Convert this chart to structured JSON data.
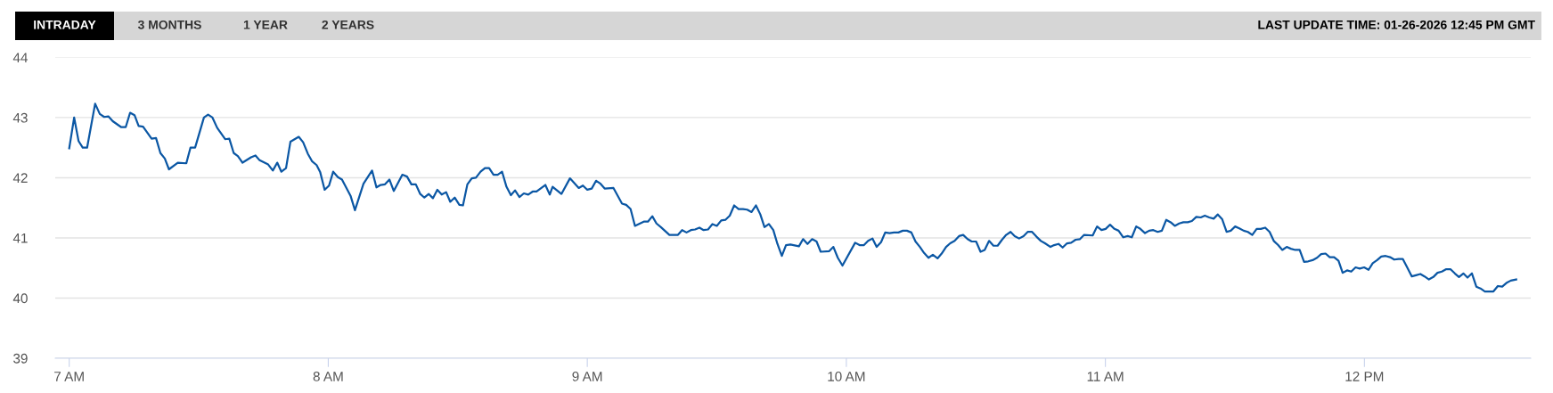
{
  "chart_data": {
    "type": "line",
    "title": "LAST UPDATE TIME: 01-26-2026 12:45 PM GMT",
    "annotations": [
      "INTRADAY",
      "3 MONTHS",
      "1 YEAR",
      "2 YEARS"
    ],
    "series": [
      {
        "color": "#0b57a4",
        "x": [
          7.0,
          7.019,
          7.036,
          7.052,
          7.069,
          7.1,
          7.118,
          7.135,
          7.151,
          7.168,
          7.201,
          7.218,
          7.235,
          7.252,
          7.268,
          7.285,
          7.318,
          7.335,
          7.352,
          7.369,
          7.385,
          7.419,
          7.452,
          7.468,
          7.486,
          7.52,
          7.536,
          7.553,
          7.571,
          7.602,
          7.618,
          7.635,
          7.651,
          7.669,
          7.702,
          7.719,
          7.735,
          7.768,
          7.786,
          7.803,
          7.819,
          7.837,
          7.854,
          7.886,
          7.903,
          7.921,
          7.938,
          7.955,
          7.969,
          7.986,
          8.003,
          8.019,
          8.037,
          8.053,
          8.086,
          8.103,
          8.136,
          8.169,
          8.186,
          8.202,
          8.219,
          8.236,
          8.253,
          8.286,
          8.304,
          8.321,
          8.338,
          8.355,
          8.371,
          8.388,
          8.404,
          8.421,
          8.438,
          8.455,
          8.471,
          8.488,
          8.506,
          8.52,
          8.537,
          8.554,
          8.57,
          8.588,
          8.605,
          8.621,
          8.638,
          8.654,
          8.671,
          8.688,
          8.705,
          8.721,
          8.738,
          8.755,
          8.772,
          8.789,
          8.804,
          8.838,
          8.855,
          8.866,
          8.9,
          8.933,
          8.967,
          8.983,
          9.0,
          9.017,
          9.034,
          9.051,
          9.067,
          9.101,
          9.134,
          9.15,
          9.167,
          9.184,
          9.218,
          9.234,
          9.251,
          9.267,
          9.284,
          9.317,
          9.35,
          9.366,
          9.383,
          9.4,
          9.416,
          9.433,
          9.449,
          9.466,
          9.483,
          9.5,
          9.517,
          9.533,
          9.55,
          9.567,
          9.584,
          9.601,
          9.617,
          9.634,
          9.651,
          9.668,
          9.684,
          9.701,
          9.718,
          9.734,
          9.751,
          9.767,
          9.784,
          9.817,
          9.833,
          9.85,
          9.868,
          9.885,
          9.901,
          9.934,
          9.95,
          9.967,
          9.985,
          10.034,
          10.051,
          10.068,
          10.084,
          10.101,
          10.117,
          10.134,
          10.15,
          10.167,
          10.184,
          10.201,
          10.218,
          10.234,
          10.251,
          10.267,
          10.284,
          10.3,
          10.317,
          10.334,
          10.352,
          10.368,
          10.385,
          10.401,
          10.418,
          10.435,
          10.451,
          10.468,
          10.484,
          10.501,
          10.518,
          10.534,
          10.551,
          10.568,
          10.584,
          10.601,
          10.617,
          10.634,
          10.65,
          10.667,
          10.684,
          10.7,
          10.717,
          10.734,
          10.751,
          10.767,
          10.788,
          10.802,
          10.819,
          10.835,
          10.852,
          10.868,
          10.885,
          10.902,
          10.918,
          10.951,
          10.968,
          10.985,
          11.001,
          11.018,
          11.035,
          11.051,
          11.069,
          11.086,
          11.102,
          11.119,
          11.135,
          11.153,
          11.169,
          11.185,
          11.202,
          11.218,
          11.235,
          11.252,
          11.268,
          11.285,
          11.301,
          11.318,
          11.334,
          11.351,
          11.368,
          11.384,
          11.401,
          11.418,
          11.434,
          11.451,
          11.468,
          11.484,
          11.501,
          11.517,
          11.534,
          11.55,
          11.567,
          11.584,
          11.6,
          11.617,
          11.634,
          11.65,
          11.667,
          11.683,
          11.7,
          11.716,
          11.733,
          11.75,
          11.767,
          11.783,
          11.8,
          11.817,
          11.833,
          11.85,
          11.866,
          11.883,
          11.9,
          11.916,
          11.933,
          11.949,
          11.966,
          11.982,
          11.999,
          12.016,
          12.032,
          12.049,
          12.065,
          12.082,
          12.099,
          12.115,
          12.132,
          12.148,
          12.165,
          12.183,
          12.199,
          12.216,
          12.232,
          12.249,
          12.266,
          12.282,
          12.299,
          12.316,
          12.332,
          12.349,
          12.365,
          12.382,
          12.398,
          12.415,
          12.432,
          12.448,
          12.465,
          12.482,
          12.498,
          12.515,
          12.532,
          12.548,
          12.565,
          12.586
        ],
        "values": [
          42.49,
          43.0,
          42.61,
          42.5,
          42.5,
          43.23,
          43.06,
          43.01,
          43.02,
          42.94,
          42.84,
          42.84,
          43.08,
          43.04,
          42.86,
          42.85,
          42.65,
          42.66,
          42.41,
          42.32,
          42.14,
          42.25,
          42.24,
          42.5,
          42.5,
          43.0,
          43.05,
          43.0,
          42.83,
          42.64,
          42.65,
          42.41,
          42.36,
          42.25,
          42.34,
          42.37,
          42.29,
          42.22,
          42.12,
          42.25,
          42.1,
          42.16,
          42.6,
          42.68,
          42.59,
          42.4,
          42.27,
          42.21,
          42.09,
          41.8,
          41.87,
          42.1,
          42.01,
          41.97,
          41.7,
          41.46,
          41.9,
          42.12,
          41.84,
          41.88,
          41.89,
          41.97,
          41.78,
          42.05,
          42.02,
          41.89,
          41.89,
          41.73,
          41.67,
          41.73,
          41.66,
          41.8,
          41.72,
          41.76,
          41.6,
          41.67,
          41.55,
          41.54,
          41.89,
          41.99,
          42.0,
          42.1,
          42.16,
          42.16,
          42.05,
          42.05,
          42.1,
          41.85,
          41.71,
          41.79,
          41.68,
          41.74,
          41.72,
          41.77,
          41.77,
          41.88,
          41.72,
          41.85,
          41.73,
          41.99,
          41.83,
          41.87,
          41.8,
          41.82,
          41.95,
          41.9,
          41.82,
          41.83,
          41.57,
          41.55,
          41.48,
          41.2,
          41.27,
          41.27,
          41.36,
          41.24,
          41.18,
          41.05,
          41.05,
          41.13,
          41.09,
          41.13,
          41.14,
          41.17,
          41.13,
          41.14,
          41.23,
          41.2,
          41.29,
          41.3,
          41.37,
          41.54,
          41.48,
          41.48,
          41.47,
          41.43,
          41.54,
          41.39,
          41.18,
          41.23,
          41.13,
          40.9,
          40.7,
          40.88,
          40.89,
          40.86,
          40.98,
          40.9,
          40.98,
          40.94,
          40.77,
          40.78,
          40.85,
          40.67,
          40.54,
          40.92,
          40.88,
          40.88,
          40.95,
          40.99,
          40.85,
          40.93,
          41.09,
          41.08,
          41.09,
          41.09,
          41.12,
          41.12,
          41.09,
          40.94,
          40.85,
          40.75,
          40.67,
          40.72,
          40.66,
          40.74,
          40.85,
          40.91,
          40.95,
          41.03,
          41.05,
          40.98,
          40.94,
          40.94,
          40.77,
          40.8,
          40.95,
          40.87,
          40.87,
          40.97,
          41.05,
          41.1,
          41.03,
          40.99,
          41.03,
          41.1,
          41.1,
          41.02,
          40.95,
          40.91,
          40.85,
          40.88,
          40.9,
          40.84,
          40.91,
          40.92,
          40.97,
          40.98,
          41.05,
          41.04,
          41.19,
          41.13,
          41.15,
          41.22,
          41.15,
          41.12,
          41.01,
          41.03,
          41.01,
          41.19,
          41.15,
          41.08,
          41.12,
          41.13,
          41.1,
          41.12,
          41.3,
          41.26,
          41.2,
          41.24,
          41.26,
          41.26,
          41.28,
          41.35,
          41.34,
          41.37,
          41.34,
          41.32,
          41.39,
          41.31,
          41.1,
          41.12,
          41.19,
          41.16,
          41.12,
          41.1,
          41.05,
          41.15,
          41.15,
          41.17,
          41.1,
          40.95,
          40.88,
          40.8,
          40.85,
          40.82,
          40.8,
          40.8,
          40.6,
          40.61,
          40.63,
          40.67,
          40.73,
          40.74,
          40.68,
          40.68,
          40.62,
          40.42,
          40.46,
          40.44,
          40.51,
          40.49,
          40.51,
          40.47,
          40.58,
          40.63,
          40.69,
          40.7,
          40.68,
          40.64,
          40.65,
          40.65,
          40.51,
          40.36,
          40.38,
          40.4,
          40.36,
          40.31,
          40.35,
          40.42,
          40.44,
          40.48,
          40.48,
          40.41,
          40.35,
          40.41,
          40.34,
          40.41,
          40.19,
          40.16,
          40.11,
          40.11,
          40.11,
          40.2,
          40.19,
          40.25,
          40.29,
          40.31
        ]
      }
    ],
    "xlim": [
      6.946,
      12.642
    ],
    "ylim": [
      39,
      44
    ],
    "xticks": [
      {
        "value": 7,
        "label": "7 AM"
      },
      {
        "value": 8,
        "label": "8 AM"
      },
      {
        "value": 9,
        "label": "9 AM"
      },
      {
        "value": 10,
        "label": "10 AM"
      },
      {
        "value": 11,
        "label": "11 AM"
      },
      {
        "value": 12,
        "label": "12 PM"
      }
    ],
    "yticks": [
      39,
      40,
      41,
      42,
      43,
      44
    ],
    "grid": "y",
    "marker": "none",
    "line_style": "solid",
    "legend": false
  }
}
